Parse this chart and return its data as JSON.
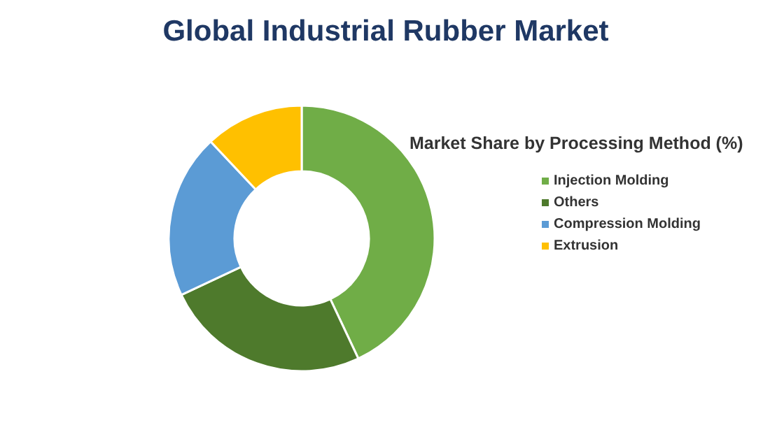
{
  "chart_data": {
    "type": "donut",
    "title": "Global Industrial Rubber Market",
    "legend_title": "Market Share by Processing Method (%)",
    "categories": [
      "Injection Molding",
      "Others",
      "Compression Molding",
      "Extrusion"
    ],
    "values": [
      43,
      25,
      20,
      12
    ],
    "colors": [
      "#70ad47",
      "#4e7a2c",
      "#5b9bd5",
      "#ffc000"
    ],
    "legend": "right"
  }
}
